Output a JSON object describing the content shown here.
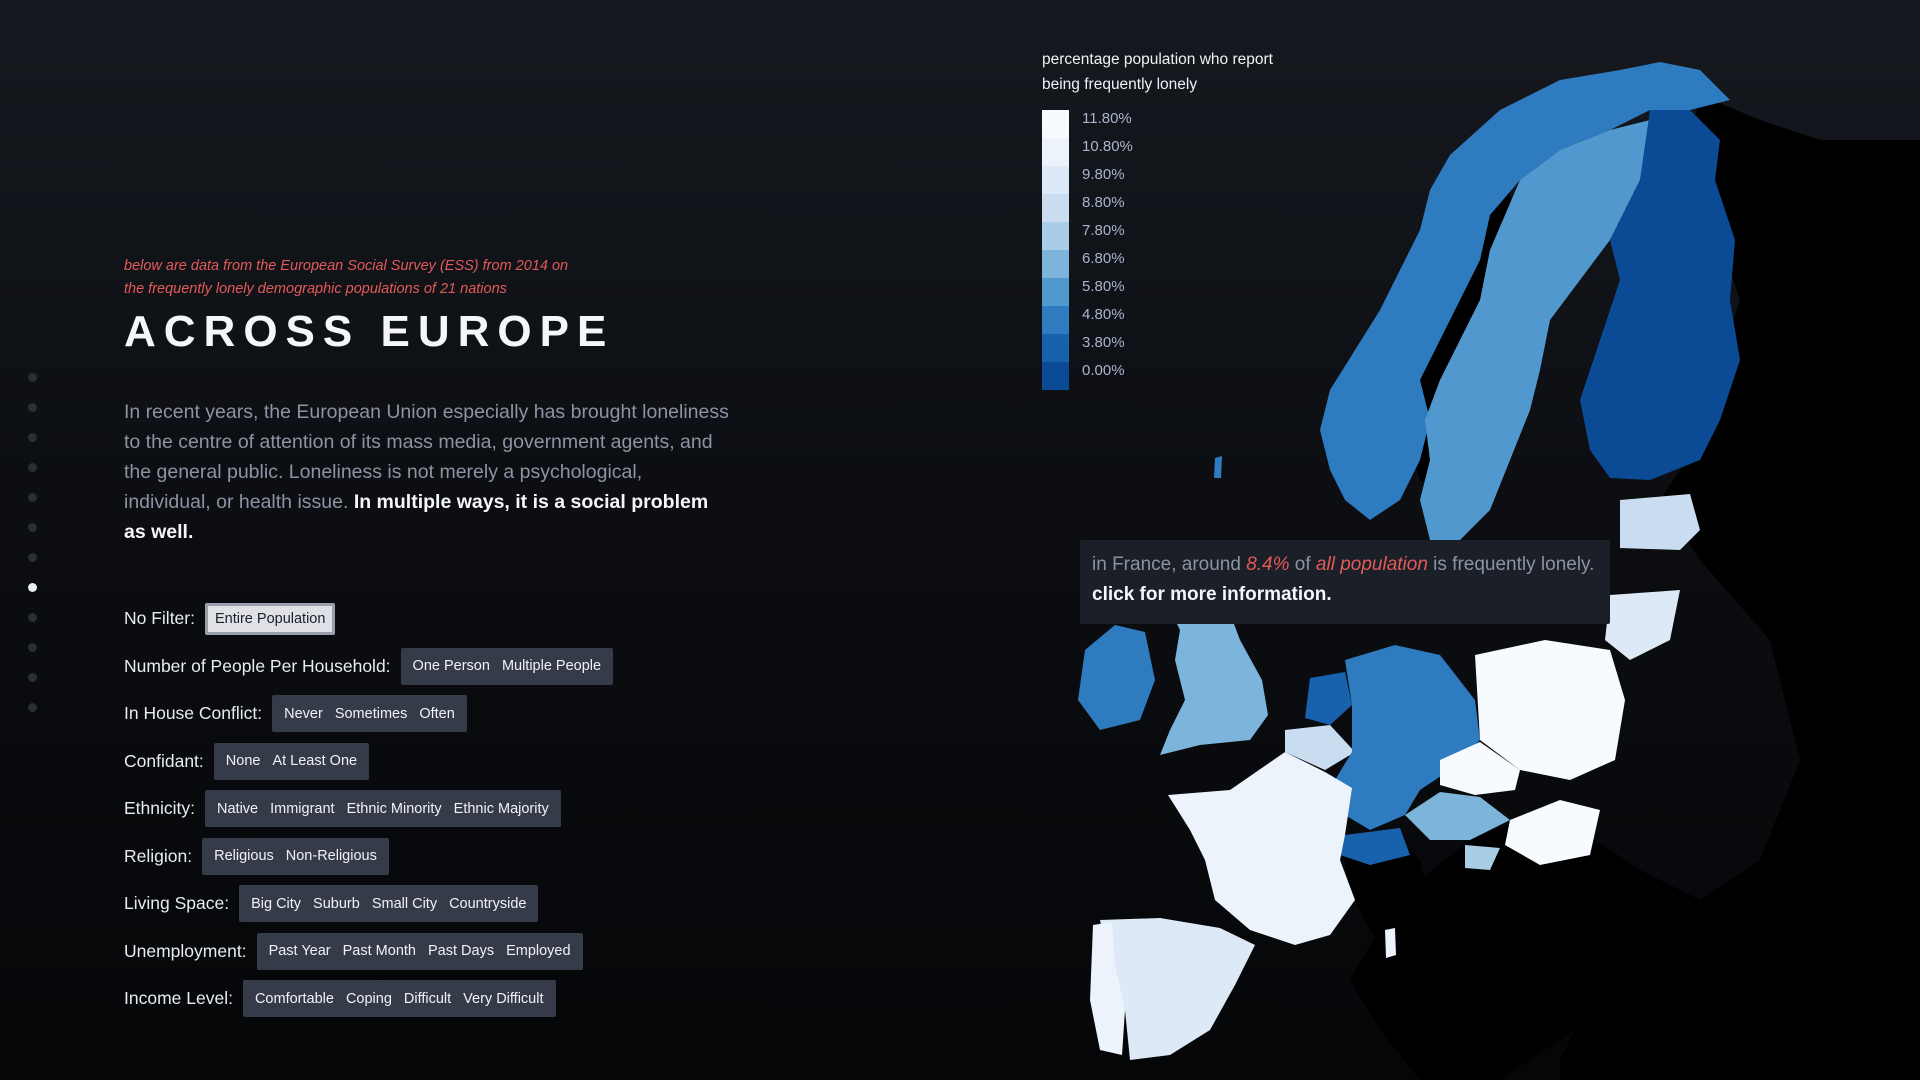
{
  "intro": {
    "source_note_line1": "below are data from the European Social Survey (ESS) from 2014 on",
    "source_note_line2": "the frequently lonely demographic populations of 21 nations",
    "title": "ACROSS EUROPE",
    "paragraph_plain": "In recent years, the European Union especially has brought loneliness to the centre of attention of its mass media, government agents, and the general public. Loneliness is not merely a psychological, individual, or health issue. ",
    "paragraph_bold": "In multiple ways, it is a social problem as well."
  },
  "nav_dots": {
    "count": 12,
    "active_index": 7
  },
  "filters": [
    {
      "label": "No Filter:",
      "options": [
        "Entire Population"
      ],
      "active": "Entire Population"
    },
    {
      "label": "Number of People Per Household:",
      "options": [
        "One Person",
        "Multiple People"
      ]
    },
    {
      "label": "In House Conflict:",
      "options": [
        "Never",
        "Sometimes",
        "Often"
      ]
    },
    {
      "label": "Confidant:",
      "options": [
        "None",
        "At Least One"
      ]
    },
    {
      "label": "Ethnicity:",
      "options": [
        "Native",
        "Immigrant",
        "Ethnic Minority",
        "Ethnic Majority"
      ]
    },
    {
      "label": "Religion:",
      "options": [
        "Religious",
        "Non-Religious"
      ]
    },
    {
      "label": "Living Space:",
      "options": [
        "Big City",
        "Suburb",
        "Small City",
        "Countryside"
      ]
    },
    {
      "label": "Unemployment:",
      "options": [
        "Past Year",
        "Past Month",
        "Past Days",
        "Employed"
      ]
    },
    {
      "label": "Income Level:",
      "options": [
        "Comfortable",
        "Coping",
        "Difficult",
        "Very Difficult"
      ]
    }
  ],
  "legend": {
    "title_line1": "percentage population who report",
    "title_line2": "being frequently lonely",
    "stops": [
      {
        "label": "11.80%",
        "color": "#f7fbff"
      },
      {
        "label": "10.80%",
        "color": "#ecf3fb"
      },
      {
        "label": "9.80%",
        "color": "#dde9f6"
      },
      {
        "label": "8.80%",
        "color": "#c9dcf0"
      },
      {
        "label": "7.80%",
        "color": "#a9cde6"
      },
      {
        "label": "6.80%",
        "color": "#7cb4dc"
      },
      {
        "label": "5.80%",
        "color": "#5198cf"
      },
      {
        "label": "4.80%",
        "color": "#2e7bc0"
      },
      {
        "label": "3.80%",
        "color": "#1862ad"
      },
      {
        "label": "0.00%",
        "color": "#0b4a94"
      }
    ]
  },
  "tooltip": {
    "prefix": "in France, around ",
    "value": "8.4%",
    "middle": " of ",
    "group": "all population",
    "suffix": " is frequently lonely.",
    "cta": "click for more information."
  },
  "map_colors": {
    "non_survey_land": "#000000",
    "ocean_shade": "#1a1f27"
  }
}
